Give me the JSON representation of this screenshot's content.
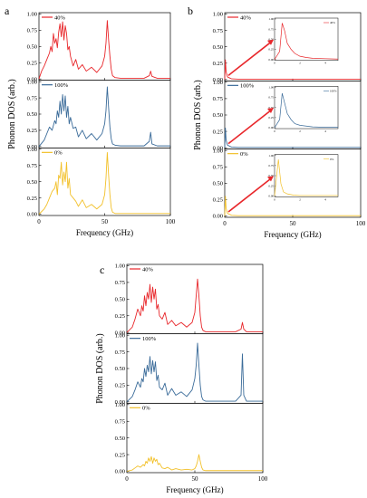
{
  "panels": [
    {
      "letter": "a",
      "xlabel": "Frequency (GHz)",
      "ylabel": "Phonon DOS (arb.)",
      "x_ticks": [
        "0",
        "50",
        "100"
      ],
      "y_ticks": [
        "0.00",
        "0.25",
        "0.50",
        "0.75",
        "1.00"
      ],
      "subplots": [
        {
          "legend": "40%",
          "color": "#e8272b"
        },
        {
          "legend": "100%",
          "color": "#3a6b99"
        },
        {
          "legend": "0%",
          "color": "#f2c029"
        }
      ]
    },
    {
      "letter": "b",
      "xlabel": "Frequency (GHz)",
      "ylabel": "Phonon DOS (arb.)",
      "x_ticks": [
        "0",
        "50",
        "100"
      ],
      "y_ticks": [
        "0.00",
        "0.25",
        "0.50",
        "0.75",
        "1.00"
      ],
      "subplots": [
        {
          "legend": "40%",
          "color": "#e8272b"
        },
        {
          "legend": "100%",
          "color": "#3a6b99"
        },
        {
          "legend": "0%",
          "color": "#f2c029"
        }
      ],
      "inset": {
        "y_ticks": [
          "0.00",
          "0.25",
          "0.50",
          "0.75",
          "1.00"
        ],
        "x_ticks": [
          "0",
          "2",
          "4"
        ]
      },
      "arrow_color": "#e8272b"
    },
    {
      "letter": "c",
      "xlabel": "Frequency (GHz)",
      "ylabel": "Phonon DOS (arb.)",
      "x_ticks": [
        "0",
        "50",
        "100"
      ],
      "y_ticks": [
        "0.00",
        "0.25",
        "0.50",
        "0.75",
        "1.00"
      ],
      "subplots": [
        {
          "legend": "40%",
          "color": "#e8272b"
        },
        {
          "legend": "100%",
          "color": "#3a6b99"
        },
        {
          "legend": "0%",
          "color": "#f2c029"
        }
      ]
    }
  ],
  "chart_data": [
    {
      "type": "line",
      "panel": "a",
      "xlabel": "Frequency (GHz)",
      "ylabel": "Phonon DOS (arb.)",
      "xlim": [
        0,
        100
      ],
      "ylim": [
        0,
        1
      ],
      "series": [
        {
          "name": "40%",
          "x": [
            0,
            2,
            4,
            6,
            8,
            9,
            10,
            11,
            12,
            13,
            14,
            15,
            16,
            17,
            18,
            19,
            20,
            21,
            22,
            23,
            24,
            26,
            28,
            30,
            33,
            36,
            40,
            44,
            48,
            50,
            51,
            52,
            53,
            54,
            55,
            56,
            58,
            62,
            70,
            80,
            84,
            85,
            86,
            90,
            100
          ],
          "y": [
            0,
            0.12,
            0.2,
            0.3,
            0.4,
            0.5,
            0.42,
            0.7,
            0.55,
            0.62,
            0.48,
            0.72,
            0.85,
            0.65,
            0.88,
            0.6,
            0.82,
            0.7,
            0.45,
            0.5,
            0.35,
            0.2,
            0.3,
            0.15,
            0.22,
            0.12,
            0.18,
            0.1,
            0.2,
            0.35,
            0.55,
            0.9,
            0.6,
            0.35,
            0.15,
            0.05,
            0.02,
            0.01,
            0.01,
            0.01,
            0.05,
            0.12,
            0.04,
            0.01,
            0.01
          ]
        },
        {
          "name": "100%",
          "x": [
            0,
            4,
            6,
            8,
            10,
            12,
            13,
            14,
            15,
            16,
            17,
            18,
            19,
            20,
            21,
            22,
            23,
            24,
            26,
            28,
            30,
            33,
            36,
            40,
            44,
            48,
            50,
            51,
            52,
            53,
            54,
            55,
            56,
            58,
            62,
            70,
            80,
            84,
            85,
            86,
            90,
            100
          ],
          "y": [
            0,
            0.1,
            0.2,
            0.3,
            0.25,
            0.4,
            0.35,
            0.55,
            0.45,
            0.7,
            0.5,
            0.8,
            0.55,
            0.78,
            0.45,
            0.62,
            0.35,
            0.45,
            0.28,
            0.3,
            0.15,
            0.25,
            0.12,
            0.2,
            0.1,
            0.2,
            0.35,
            0.55,
            0.92,
            0.6,
            0.3,
            0.12,
            0.04,
            0.02,
            0.01,
            0.01,
            0.01,
            0.08,
            0.22,
            0.04,
            0.01,
            0.01
          ]
        },
        {
          "name": "0%",
          "x": [
            0,
            4,
            6,
            8,
            10,
            12,
            13,
            14,
            15,
            16,
            17,
            18,
            19,
            20,
            21,
            22,
            23,
            24,
            26,
            28,
            30,
            33,
            36,
            40,
            44,
            48,
            50,
            51,
            52,
            53,
            54,
            55,
            56,
            58,
            62,
            70,
            80,
            90,
            100
          ],
          "y": [
            0,
            0.08,
            0.15,
            0.25,
            0.35,
            0.4,
            0.5,
            0.3,
            0.6,
            0.55,
            0.8,
            0.45,
            0.65,
            0.5,
            0.8,
            0.4,
            0.55,
            0.3,
            0.25,
            0.2,
            0.12,
            0.22,
            0.1,
            0.15,
            0.08,
            0.15,
            0.3,
            0.55,
            0.95,
            0.6,
            0.3,
            0.1,
            0.03,
            0.01,
            0.01,
            0.01,
            0.01,
            0.01,
            0.01
          ]
        }
      ]
    },
    {
      "type": "line",
      "panel": "b",
      "xlabel": "Frequency (GHz)",
      "ylabel": "Phonon DOS (arb.)",
      "xlim": [
        0,
        100
      ],
      "ylim": [
        0,
        1
      ],
      "series": [
        {
          "name": "40%",
          "x": [
            0,
            0.5,
            1,
            2,
            5,
            10,
            50,
            100
          ],
          "y": [
            0,
            0.3,
            0.12,
            0.04,
            0.01,
            0.005,
            0.005,
            0.005
          ]
        },
        {
          "name": "100%",
          "x": [
            0,
            0.5,
            1,
            2,
            5,
            10,
            50,
            100
          ],
          "y": [
            0,
            0.3,
            0.12,
            0.04,
            0.01,
            0.005,
            0.005,
            0.005
          ]
        },
        {
          "name": "0%",
          "x": [
            0,
            0.5,
            1,
            2,
            5,
            10,
            50,
            100
          ],
          "y": [
            0,
            0.3,
            0.12,
            0.04,
            0.01,
            0.005,
            0.005,
            0.005
          ]
        }
      ],
      "insets": [
        {
          "name": "40%",
          "xlim": [
            0,
            5
          ],
          "ylim": [
            0,
            1
          ],
          "x": [
            0,
            0.4,
            0.6,
            0.8,
            1,
            1.3,
            1.6,
            2,
            2.5,
            3,
            4,
            5
          ],
          "y": [
            0,
            0.2,
            0.9,
            0.7,
            0.4,
            0.25,
            0.15,
            0.08,
            0.05,
            0.03,
            0.02,
            0.01
          ]
        },
        {
          "name": "100%",
          "xlim": [
            0,
            5
          ],
          "ylim": [
            0,
            1
          ],
          "x": [
            0,
            0.4,
            0.6,
            0.8,
            1,
            1.3,
            1.6,
            2,
            2.5,
            3,
            4,
            5
          ],
          "y": [
            0,
            0.2,
            0.85,
            0.6,
            0.35,
            0.2,
            0.1,
            0.06,
            0.04,
            0.02,
            0.01,
            0.01
          ]
        },
        {
          "name": "0%",
          "xlim": [
            0,
            5
          ],
          "ylim": [
            0,
            1
          ],
          "x": [
            0,
            0.3,
            0.5,
            0.7,
            1,
            1.5,
            2,
            3,
            4,
            5
          ],
          "y": [
            0,
            0.9,
            0.3,
            0.1,
            0.05,
            0.02,
            0.01,
            0.01,
            0.01,
            0.01
          ]
        }
      ]
    },
    {
      "type": "line",
      "panel": "c",
      "xlabel": "Frequency (GHz)",
      "ylabel": "Phonon DOS (arb.)",
      "xlim": [
        0,
        100
      ],
      "ylim": [
        0,
        1
      ],
      "series": [
        {
          "name": "40%",
          "x": [
            0,
            4,
            6,
            8,
            10,
            11,
            12,
            13,
            14,
            15,
            16,
            17,
            18,
            19,
            20,
            21,
            22,
            23,
            24,
            26,
            28,
            30,
            33,
            36,
            40,
            44,
            48,
            50,
            51,
            52,
            53,
            54,
            55,
            56,
            58,
            62,
            70,
            80,
            84,
            85,
            86,
            88,
            90,
            100
          ],
          "y": [
            0,
            0.08,
            0.2,
            0.35,
            0.25,
            0.4,
            0.32,
            0.55,
            0.4,
            0.6,
            0.5,
            0.72,
            0.45,
            0.68,
            0.5,
            0.65,
            0.35,
            0.42,
            0.25,
            0.2,
            0.3,
            0.12,
            0.18,
            0.1,
            0.15,
            0.08,
            0.15,
            0.3,
            0.55,
            0.8,
            0.55,
            0.25,
            0.08,
            0.03,
            0.01,
            0.01,
            0.01,
            0.01,
            0.05,
            0.15,
            0.05,
            0.01,
            0.01,
            0.01
          ]
        },
        {
          "name": "100%",
          "x": [
            0,
            4,
            6,
            8,
            10,
            11,
            12,
            13,
            14,
            15,
            16,
            17,
            18,
            19,
            20,
            21,
            22,
            23,
            24,
            26,
            28,
            30,
            33,
            36,
            40,
            44,
            48,
            50,
            51,
            52,
            53,
            54,
            55,
            56,
            58,
            62,
            70,
            80,
            84,
            85,
            86,
            88,
            90,
            100
          ],
          "y": [
            0,
            0.08,
            0.18,
            0.3,
            0.22,
            0.35,
            0.3,
            0.5,
            0.38,
            0.55,
            0.45,
            0.68,
            0.42,
            0.62,
            0.45,
            0.6,
            0.32,
            0.4,
            0.22,
            0.18,
            0.28,
            0.1,
            0.2,
            0.1,
            0.15,
            0.08,
            0.18,
            0.35,
            0.55,
            0.88,
            0.55,
            0.25,
            0.08,
            0.03,
            0.01,
            0.01,
            0.01,
            0.01,
            0.1,
            0.72,
            0.1,
            0.01,
            0.01,
            0.01
          ]
        },
        {
          "name": "0%",
          "x": [
            0,
            4,
            6,
            8,
            10,
            12,
            13,
            14,
            15,
            16,
            17,
            18,
            19,
            20,
            21,
            22,
            23,
            24,
            26,
            28,
            30,
            33,
            36,
            40,
            44,
            48,
            50,
            51,
            52,
            53,
            54,
            55,
            56,
            58,
            62,
            70,
            80,
            90,
            100
          ],
          "y": [
            0,
            0.02,
            0.05,
            0.08,
            0.06,
            0.1,
            0.08,
            0.15,
            0.12,
            0.2,
            0.15,
            0.22,
            0.12,
            0.2,
            0.15,
            0.18,
            0.1,
            0.12,
            0.05,
            0.04,
            0.06,
            0.02,
            0.04,
            0.02,
            0.03,
            0.02,
            0.04,
            0.08,
            0.15,
            0.25,
            0.15,
            0.06,
            0.02,
            0.01,
            0.01,
            0.01,
            0.01,
            0.01,
            0.01
          ]
        }
      ]
    }
  ]
}
